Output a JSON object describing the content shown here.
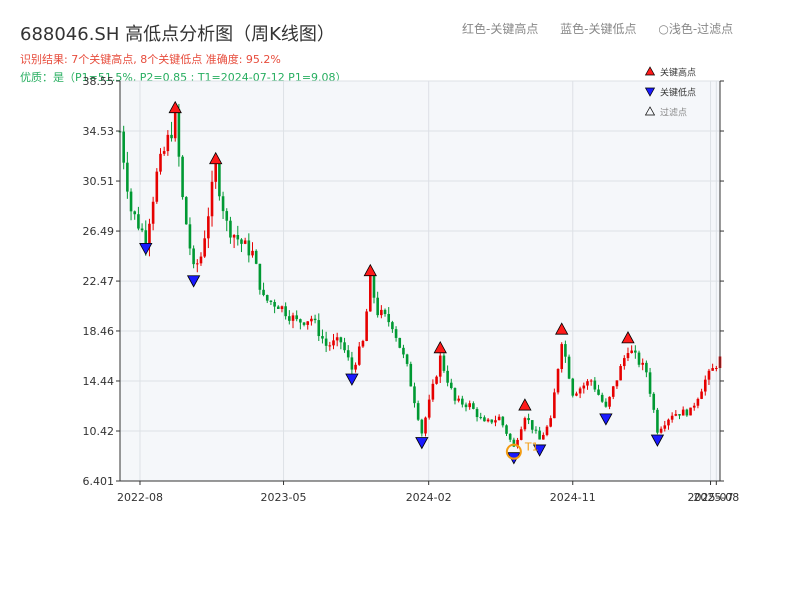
{
  "title": "688046.SH 高低点分析图（周K线图）",
  "top_legend": {
    "red_label": "红色-关键高点",
    "blue_label": "蓝色-关键低点",
    "light_label": "○浅色-过滤点"
  },
  "info": {
    "line1": "识别结果: 7个关键高点, 8个关键低点   准确度: 95.2%",
    "line2": "优质：是（P1=51.5%, P2=0.85 ; T1=2024-07-12 P1=9.08）"
  },
  "colors": {
    "up": "#e60000",
    "down": "#009933",
    "high_marker": "#ff1a1a",
    "low_marker": "#1a1aff",
    "t1_circle": "#f39c12",
    "plot_bg": "#f5f7fa",
    "grid": "#dde1e6"
  },
  "chart_data": {
    "type": "candlestick",
    "title": "688046.SH 高低点分析图（周K线图）",
    "xlabel": "",
    "ylabel": "",
    "x_range": [
      "2022-06-24",
      "2025-08-08"
    ],
    "ylim": [
      6.401,
      38.55
    ],
    "y_ticks": [
      6.401,
      10.42,
      14.44,
      18.46,
      22.47,
      26.49,
      30.51,
      34.53,
      38.55
    ],
    "x_ticks": [
      {
        "date": "2022-08-01",
        "label": "2022-08"
      },
      {
        "date": "2023-05-01",
        "label": "2023-05"
      },
      {
        "date": "2024-02-01",
        "label": "2024-02"
      },
      {
        "date": "2024-11-01",
        "label": "2024-11"
      },
      {
        "date": "2025-07-21",
        "label": "2025-07"
      },
      {
        "date": "2025-08-01",
        "label": "2025-08"
      }
    ],
    "price_path": [
      [
        "2022-06-24",
        34.5
      ],
      [
        "2022-07-15",
        28.2
      ],
      [
        "2022-08-12",
        25.9
      ],
      [
        "2022-09-02",
        31.0
      ],
      [
        "2022-10-07",
        35.6
      ],
      [
        "2022-10-21",
        29.0
      ],
      [
        "2022-11-11",
        23.3
      ],
      [
        "2022-11-25",
        24.5
      ],
      [
        "2022-12-23",
        31.5
      ],
      [
        "2023-01-13",
        27.0
      ],
      [
        "2023-02-10",
        25.5
      ],
      [
        "2023-03-03",
        24.7
      ],
      [
        "2023-03-24",
        21.0
      ],
      [
        "2023-04-21",
        20.6
      ],
      [
        "2023-05-26",
        19.2
      ],
      [
        "2023-06-23",
        19.5
      ],
      [
        "2023-07-21",
        17.3
      ],
      [
        "2023-08-18",
        17.6
      ],
      [
        "2023-09-08",
        15.4
      ],
      [
        "2023-09-29",
        17.5
      ],
      [
        "2023-10-13",
        22.5
      ],
      [
        "2023-10-27",
        20.0
      ],
      [
        "2023-11-24",
        19.0
      ],
      [
        "2023-12-22",
        15.5
      ],
      [
        "2024-01-19",
        10.3
      ],
      [
        "2024-02-23",
        16.3
      ],
      [
        "2024-03-22",
        12.8
      ],
      [
        "2024-04-19",
        12.5
      ],
      [
        "2024-05-17",
        11.0
      ],
      [
        "2024-06-14",
        11.5
      ],
      [
        "2024-07-12",
        9.08
      ],
      [
        "2024-08-02",
        11.7
      ],
      [
        "2024-08-30",
        9.7
      ],
      [
        "2024-09-20",
        11.2
      ],
      [
        "2024-10-11",
        17.8
      ],
      [
        "2024-11-01",
        13.5
      ],
      [
        "2024-12-06",
        14.5
      ],
      [
        "2025-01-03",
        12.2
      ],
      [
        "2025-02-14",
        17.1
      ],
      [
        "2025-03-21",
        15.2
      ],
      [
        "2025-04-11",
        10.5
      ],
      [
        "2025-05-09",
        11.8
      ],
      [
        "2025-06-13",
        12.0
      ],
      [
        "2025-07-11",
        14.5
      ],
      [
        "2025-08-08",
        16.2
      ]
    ],
    "key_highs": [
      {
        "date": "2022-10-07",
        "price": 35.6
      },
      {
        "date": "2022-12-23",
        "price": 31.5
      },
      {
        "date": "2023-10-13",
        "price": 22.5
      },
      {
        "date": "2024-02-23",
        "price": 16.3
      },
      {
        "date": "2024-08-02",
        "price": 11.7
      },
      {
        "date": "2024-10-11",
        "price": 17.8
      },
      {
        "date": "2025-02-14",
        "price": 17.1
      }
    ],
    "key_lows": [
      {
        "date": "2022-08-12",
        "price": 25.9
      },
      {
        "date": "2022-11-11",
        "price": 23.3
      },
      {
        "date": "2023-09-08",
        "price": 15.4
      },
      {
        "date": "2024-01-19",
        "price": 10.3
      },
      {
        "date": "2024-07-12",
        "price": 9.08
      },
      {
        "date": "2024-08-30",
        "price": 9.7
      },
      {
        "date": "2025-01-03",
        "price": 12.2
      },
      {
        "date": "2025-04-11",
        "price": 10.5
      }
    ],
    "t1": {
      "date": "2024-07-12",
      "price": 9.08,
      "label": "T1"
    },
    "legend": {
      "position": "top-right",
      "items": [
        {
          "label": "关键高点",
          "marker": "high"
        },
        {
          "label": "关键低点",
          "marker": "low"
        },
        {
          "label": "过滤点",
          "marker": "filtered"
        }
      ]
    },
    "grid": true
  }
}
